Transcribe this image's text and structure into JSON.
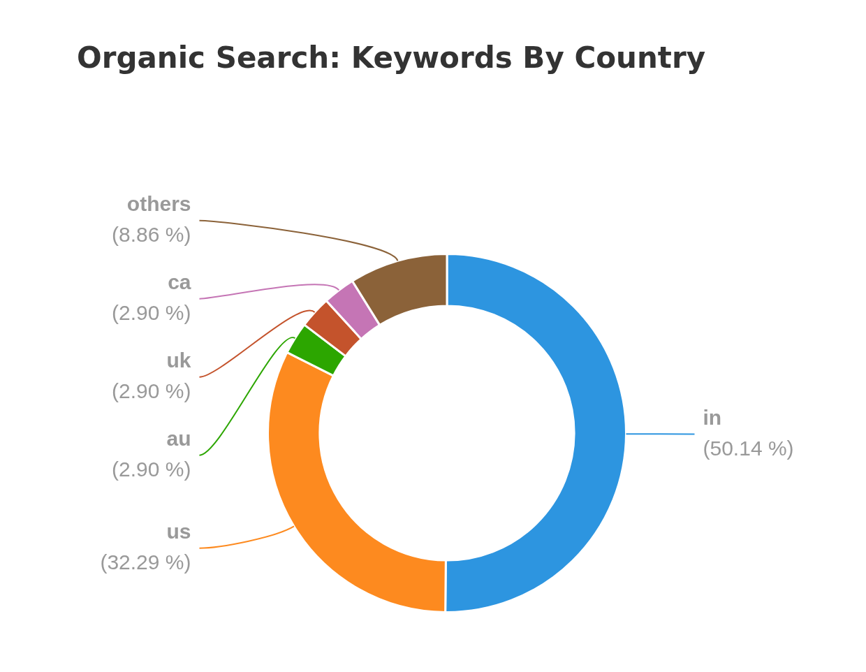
{
  "chart_data": {
    "type": "donut",
    "title": "Organic Search: Keywords By Country",
    "categories": [
      "in",
      "us",
      "au",
      "uk",
      "ca",
      "others"
    ],
    "values": [
      50.14,
      32.29,
      2.9,
      2.9,
      2.9,
      8.86
    ],
    "colors": [
      "#2d95e0",
      "#fd8a1f",
      "#2ca600",
      "#c4532c",
      "#c575b5",
      "#8b6239"
    ],
    "value_labels": [
      "(50.14 %)",
      "(32.29 %)",
      "(2.90 %)",
      "(2.90 %)",
      "(2.90 %)",
      "(8.86 %)"
    ]
  }
}
